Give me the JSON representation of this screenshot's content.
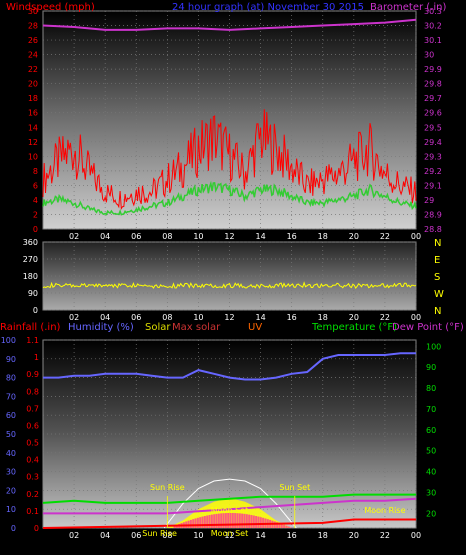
{
  "header": {
    "windspeed_label": "Windspeed (mph)",
    "title": "24 hour graph (at)   November 30 2015",
    "barometer_label": "Barometer (.in)"
  },
  "bottom_header": {
    "rainfall_label": "Rainfall (.in)",
    "humidity_label": "Humidity (%)",
    "solar_label": "Solar",
    "max_solar_label": "Max solar",
    "uv_label": "UV",
    "temperature_label": "Temperature (°F)",
    "dewpoint_label": "Dew Point (°F)"
  },
  "colors": {
    "background": "#000000",
    "wind_gust": "#ff0000",
    "wind_avg": "#33cc33",
    "barometer": "#cc33cc",
    "direction": "#ffff00",
    "humidity": "#6666ff",
    "temperature": "#00dd00",
    "dewpoint": "#cc33cc",
    "rainfall": "#ff0000",
    "solar": "#ffff00",
    "uv": "#ff3399",
    "max_solar": "#ffffff",
    "left_axis_wind": "#ff0000",
    "right_axis_baro": "#cc33cc",
    "compass_letters": "#ffff00",
    "rain_axis": "#ff0000",
    "humidity_axis": "#6666ff",
    "temp_axis": "#00dd00"
  },
  "chart_data": [
    {
      "type": "line",
      "name": "wind-barometer",
      "x_ticks": [
        "02",
        "04",
        "06",
        "08",
        "10",
        "12",
        "14",
        "16",
        "18",
        "20",
        "22",
        "00"
      ],
      "left_axis": {
        "label": "Windspeed (mph)",
        "ticks": [
          0,
          2,
          4,
          6,
          8,
          10,
          12,
          14,
          16,
          18,
          20,
          22,
          24,
          26,
          28,
          30
        ],
        "ylim": [
          0,
          30
        ]
      },
      "right_axis": {
        "label": "Barometer (.in)",
        "ticks": [
          28.8,
          28.9,
          29,
          29.1,
          29.2,
          29.3,
          29.4,
          29.5,
          29.6,
          29.7,
          29.8,
          29.9,
          30,
          30.1,
          30.2,
          30.3
        ],
        "ylim": [
          28.8,
          30.3
        ]
      },
      "series": [
        {
          "name": "Barometer",
          "axis": "right",
          "x": [
            0,
            2,
            4,
            6,
            8,
            10,
            12,
            14,
            16,
            18,
            20,
            22,
            24
          ],
          "values": [
            30.2,
            30.19,
            30.17,
            30.17,
            30.18,
            30.18,
            30.17,
            30.18,
            30.19,
            30.2,
            30.21,
            30.22,
            30.24
          ]
        },
        {
          "name": "Gust",
          "axis": "left",
          "x": [
            0,
            1,
            2,
            3,
            4,
            5,
            6,
            7,
            8,
            9,
            10,
            11,
            12,
            13,
            14,
            15,
            16,
            17,
            18,
            19,
            20,
            21,
            22,
            23,
            24
          ],
          "values": [
            8,
            11,
            13,
            9,
            6,
            5,
            6,
            6,
            8,
            10,
            13,
            15,
            12,
            9,
            15,
            13,
            10,
            7,
            8,
            9,
            11,
            13,
            9,
            7,
            6
          ]
        },
        {
          "name": "Average",
          "axis": "left",
          "x": [
            0,
            1,
            2,
            3,
            4,
            5,
            6,
            7,
            8,
            9,
            10,
            11,
            12,
            13,
            14,
            15,
            16,
            17,
            18,
            19,
            20,
            21,
            22,
            23,
            24
          ],
          "values": [
            4,
            4.5,
            4,
            3,
            2.5,
            2.5,
            3,
            3.5,
            4,
            5,
            6,
            6.5,
            6,
            5,
            6,
            6,
            5,
            4,
            4,
            4.5,
            5,
            6,
            5,
            4,
            3.5
          ]
        }
      ]
    },
    {
      "type": "line",
      "name": "wind-direction",
      "x_ticks": [
        "02",
        "04",
        "06",
        "08",
        "10",
        "12",
        "14",
        "16",
        "18",
        "20",
        "22",
        "00"
      ],
      "left_axis": {
        "ticks": [
          0,
          90,
          180,
          270,
          360
        ],
        "ylim": [
          0,
          360
        ]
      },
      "right_axis": {
        "ticks": [
          "N",
          "W",
          "S",
          "E",
          "N"
        ]
      },
      "series": [
        {
          "name": "Direction",
          "x": [
            0,
            2,
            4,
            6,
            8,
            10,
            12,
            14,
            16,
            18,
            20,
            22,
            24
          ],
          "values": [
            130,
            128,
            130,
            132,
            128,
            130,
            130,
            128,
            132,
            130,
            128,
            130,
            132
          ]
        }
      ]
    },
    {
      "type": "line",
      "name": "rain-humidity-solar-temperature",
      "x_ticks": [
        "02",
        "04",
        "06",
        "08",
        "10",
        "12",
        "14",
        "16",
        "18",
        "20",
        "22",
        "00"
      ],
      "annotations": [
        "Sun Rise",
        "Sun Set",
        "Moon Set",
        "Moon Rise",
        "Sun Rise",
        "Moon Set"
      ],
      "left_axis_outer": {
        "label": "Humidity (%)",
        "ticks": [
          0,
          10,
          20,
          30,
          40,
          50,
          60,
          70,
          80,
          90,
          100
        ],
        "ylim": [
          0,
          100
        ]
      },
      "left_axis_inner": {
        "label": "Rainfall (.in)",
        "ticks": [
          0,
          0.1,
          0.2,
          0.3,
          0.4,
          0.5,
          0.6,
          0.7,
          0.8,
          0.9,
          1,
          1.1
        ],
        "ylim": [
          0,
          1.1
        ]
      },
      "right_axis": {
        "label": "Temperature (°F)",
        "ticks": [
          20,
          30,
          40,
          50,
          60,
          70,
          80,
          90,
          100
        ],
        "ylim": [
          13,
          103
        ]
      },
      "series": [
        {
          "name": "Humidity",
          "axis": "outer",
          "x": [
            0,
            1,
            2,
            3,
            4,
            5,
            6,
            7,
            8,
            9,
            10,
            11,
            12,
            13,
            14,
            15,
            16,
            17,
            18,
            19,
            20,
            21,
            22,
            23,
            24
          ],
          "values": [
            80,
            80,
            81,
            81,
            82,
            82,
            82,
            81,
            80,
            80,
            84,
            82,
            80,
            79,
            79,
            80,
            82,
            83,
            90,
            92,
            92,
            92,
            92,
            93,
            93
          ]
        },
        {
          "name": "Temperature",
          "axis": "right",
          "x": [
            0,
            2,
            4,
            6,
            8,
            10,
            12,
            14,
            16,
            18,
            20,
            22,
            24
          ],
          "values": [
            25,
            26,
            25,
            25,
            25,
            26,
            27,
            28,
            28,
            28,
            29,
            29,
            29
          ]
        },
        {
          "name": "Dew Point",
          "axis": "right",
          "x": [
            0,
            2,
            4,
            6,
            8,
            10,
            12,
            14,
            16,
            18,
            20,
            22,
            24
          ],
          "values": [
            20,
            20,
            20,
            20,
            20,
            21,
            22,
            23,
            24,
            25,
            26,
            26,
            27
          ]
        },
        {
          "name": "Rainfall",
          "axis": "inner",
          "x": [
            0,
            12,
            18,
            20,
            24
          ],
          "values": [
            0,
            0.02,
            0.03,
            0.05,
            0.05
          ]
        },
        {
          "name": "Max solar",
          "axis": "outer",
          "x": [
            7.8,
            9,
            10,
            11,
            12,
            13,
            14,
            15,
            16.3
          ],
          "values": [
            0,
            13,
            21,
            25,
            26,
            25,
            21,
            13,
            0
          ]
        },
        {
          "name": "Solar",
          "axis": "outer",
          "x": [
            8,
            9,
            10,
            11,
            12,
            13,
            14,
            15,
            16
          ],
          "values": [
            0,
            4,
            10,
            14,
            16,
            14,
            10,
            4,
            0
          ]
        }
      ]
    }
  ]
}
